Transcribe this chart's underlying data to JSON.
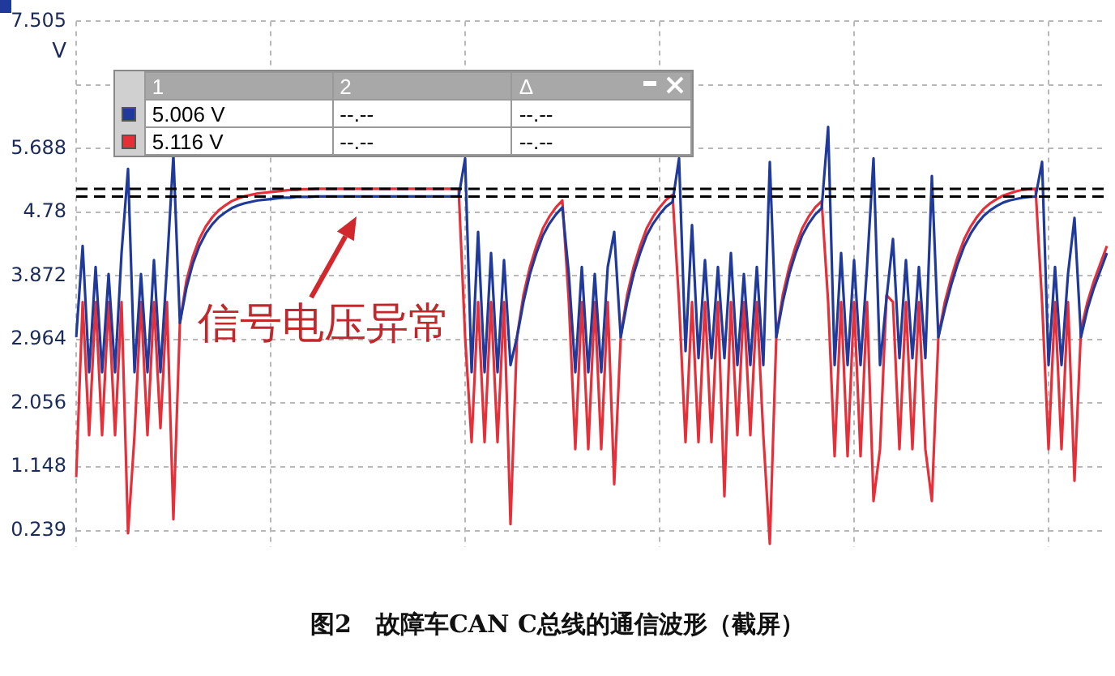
{
  "chart_data": {
    "type": "line",
    "title": "图2　故障车CAN C总线的通信波形（截屏）",
    "ylabel": "V",
    "categories": [
      null,
      null,
      null,
      null,
      null,
      null,
      null,
      null,
      null,
      null,
      null,
      null,
      null,
      null,
      null,
      null,
      null,
      null,
      null,
      null,
      null,
      null,
      null,
      null,
      null,
      null,
      null,
      null,
      null,
      null,
      null,
      null,
      null,
      null,
      null,
      null,
      null,
      null,
      null,
      null,
      null,
      null,
      null,
      null,
      null,
      null,
      null,
      null,
      null,
      null,
      null,
      null,
      null,
      null,
      null,
      null,
      null,
      null,
      null,
      null,
      null,
      null,
      null,
      null,
      null,
      null,
      null,
      null,
      null,
      null,
      null,
      null,
      null,
      null,
      null,
      null,
      null,
      null,
      null,
      null,
      null,
      null,
      null,
      null,
      null,
      null,
      null,
      null,
      null,
      null,
      null,
      null,
      null,
      null,
      null,
      null,
      null,
      null,
      null,
      null,
      null,
      null,
      null,
      null,
      null,
      null,
      null,
      null,
      null,
      null,
      null,
      null,
      null,
      null,
      null,
      null,
      null,
      null,
      null,
      null,
      null,
      null,
      null,
      null,
      null,
      null,
      null,
      null,
      null,
      null,
      null,
      null,
      null,
      null,
      null,
      null,
      null,
      null,
      null,
      null,
      null,
      null,
      null,
      null,
      null,
      null,
      null,
      null,
      null,
      null,
      null,
      null,
      null,
      null,
      null,
      null,
      null,
      null,
      null,
      null
    ],
    "ylim": [
      0,
      7.505
    ],
    "yticks": [
      0.239,
      1.148,
      2.056,
      2.964,
      3.872,
      4.78,
      5.688,
      {
        "value": 6.596,
        "label": null
      },
      7.505
    ],
    "grid": true,
    "legend": false,
    "marker": "none",
    "series": [
      {
        "color": "#1f3a9a",
        "values": [
          3.0,
          4.3,
          2.5,
          4.0,
          2.5,
          3.9,
          2.5,
          4.2,
          5.4,
          2.5,
          3.9,
          2.5,
          4.1,
          2.5,
          4.0,
          5.6,
          3.2,
          3.7,
          4.05,
          4.3,
          4.48,
          4.61,
          4.71,
          4.78,
          4.84,
          4.88,
          4.91,
          4.93,
          4.95,
          4.96,
          4.97,
          4.98,
          4.99,
          4.99,
          5.0,
          5.0,
          5.0,
          5.006,
          5.006,
          5.006,
          5.006,
          5.006,
          5.006,
          5.006,
          5.006,
          5.006,
          5.006,
          5.006,
          5.006,
          5.006,
          5.006,
          5.006,
          5.006,
          5.006,
          5.006,
          5.006,
          5.006,
          5.006,
          5.006,
          5.006,
          5.55,
          2.5,
          4.5,
          2.5,
          4.2,
          2.5,
          4.1,
          2.6,
          3.0,
          3.5,
          3.9,
          4.2,
          4.45,
          4.62,
          4.75,
          4.85,
          3.9,
          2.5,
          4.0,
          2.5,
          3.9,
          2.5,
          4.0,
          4.5,
          3.0,
          3.5,
          3.9,
          4.2,
          4.45,
          4.62,
          4.75,
          4.86,
          4.93,
          5.55,
          2.8,
          4.6,
          2.7,
          4.1,
          2.7,
          4.0,
          2.7,
          4.2,
          2.6,
          3.9,
          2.6,
          4.0,
          2.6,
          5.5,
          3.0,
          3.5,
          3.9,
          4.2,
          4.45,
          4.62,
          4.75,
          4.84,
          6.0,
          2.6,
          4.2,
          2.6,
          4.1,
          2.6,
          4.0,
          5.55,
          2.6,
          3.55,
          4.4,
          2.7,
          4.1,
          2.7,
          4.0,
          2.7,
          5.3,
          3.0,
          3.4,
          3.75,
          4.05,
          4.3,
          4.48,
          4.62,
          4.73,
          4.81,
          4.87,
          4.92,
          4.95,
          4.97,
          4.99,
          5.0,
          5.006,
          5.5,
          2.6,
          4.0,
          2.6,
          3.9,
          4.7,
          3.0,
          3.4,
          3.7,
          3.95,
          4.2
        ]
      },
      {
        "color": "#e5303a",
        "values": [
          1.0,
          3.5,
          1.6,
          3.5,
          1.6,
          3.5,
          1.6,
          3.5,
          0.2,
          1.6,
          3.5,
          1.6,
          3.5,
          1.7,
          3.5,
          0.4,
          3.2,
          3.8,
          4.15,
          4.4,
          4.58,
          4.71,
          4.81,
          4.88,
          4.94,
          4.98,
          5.01,
          5.03,
          5.05,
          5.06,
          5.07,
          5.08,
          5.09,
          5.1,
          5.1,
          5.11,
          5.11,
          5.116,
          5.116,
          5.116,
          5.116,
          5.116,
          5.116,
          5.116,
          5.116,
          5.116,
          5.116,
          5.116,
          5.116,
          5.116,
          5.116,
          5.116,
          5.116,
          5.116,
          5.116,
          5.116,
          5.116,
          5.116,
          5.116,
          5.116,
          3.0,
          1.5,
          3.5,
          1.5,
          3.5,
          1.5,
          3.5,
          0.33,
          3.0,
          3.6,
          4.0,
          4.3,
          4.55,
          4.72,
          4.85,
          4.95,
          3.5,
          1.4,
          3.5,
          1.4,
          3.5,
          1.4,
          3.5,
          0.9,
          3.0,
          3.6,
          4.0,
          4.3,
          4.55,
          4.72,
          4.85,
          4.96,
          5.03,
          3.5,
          1.5,
          3.5,
          1.5,
          3.5,
          1.5,
          3.5,
          0.73,
          3.5,
          1.6,
          3.5,
          1.6,
          3.5,
          1.6,
          0.05,
          3.0,
          3.6,
          4.0,
          4.3,
          4.55,
          4.72,
          4.85,
          4.94,
          3.5,
          1.3,
          3.5,
          1.3,
          3.5,
          1.3,
          3.5,
          0.66,
          1.4,
          3.6,
          3.5,
          1.4,
          3.5,
          1.4,
          3.5,
          1.4,
          0.66,
          3.0,
          3.5,
          3.85,
          4.15,
          4.4,
          4.58,
          4.72,
          4.83,
          4.91,
          4.97,
          5.02,
          5.05,
          5.08,
          5.1,
          5.11,
          5.116,
          3.5,
          1.4,
          3.5,
          1.4,
          3.5,
          0.95,
          3.1,
          3.5,
          3.8,
          4.05,
          4.3
        ]
      }
    ],
    "ref_lines": [
      {
        "axis": "y",
        "value": 5.006,
        "color": "#000000",
        "line_style": "dashed"
      },
      {
        "axis": "y",
        "value": 5.116,
        "color": "#000000",
        "line_style": "dashed"
      }
    ],
    "annotations": [
      "信号电压异常",
      "1",
      "2",
      "Δ",
      "5.006 V",
      "--.--",
      "--.--",
      "5.116 V",
      "--.--",
      "--.--"
    ]
  }
}
